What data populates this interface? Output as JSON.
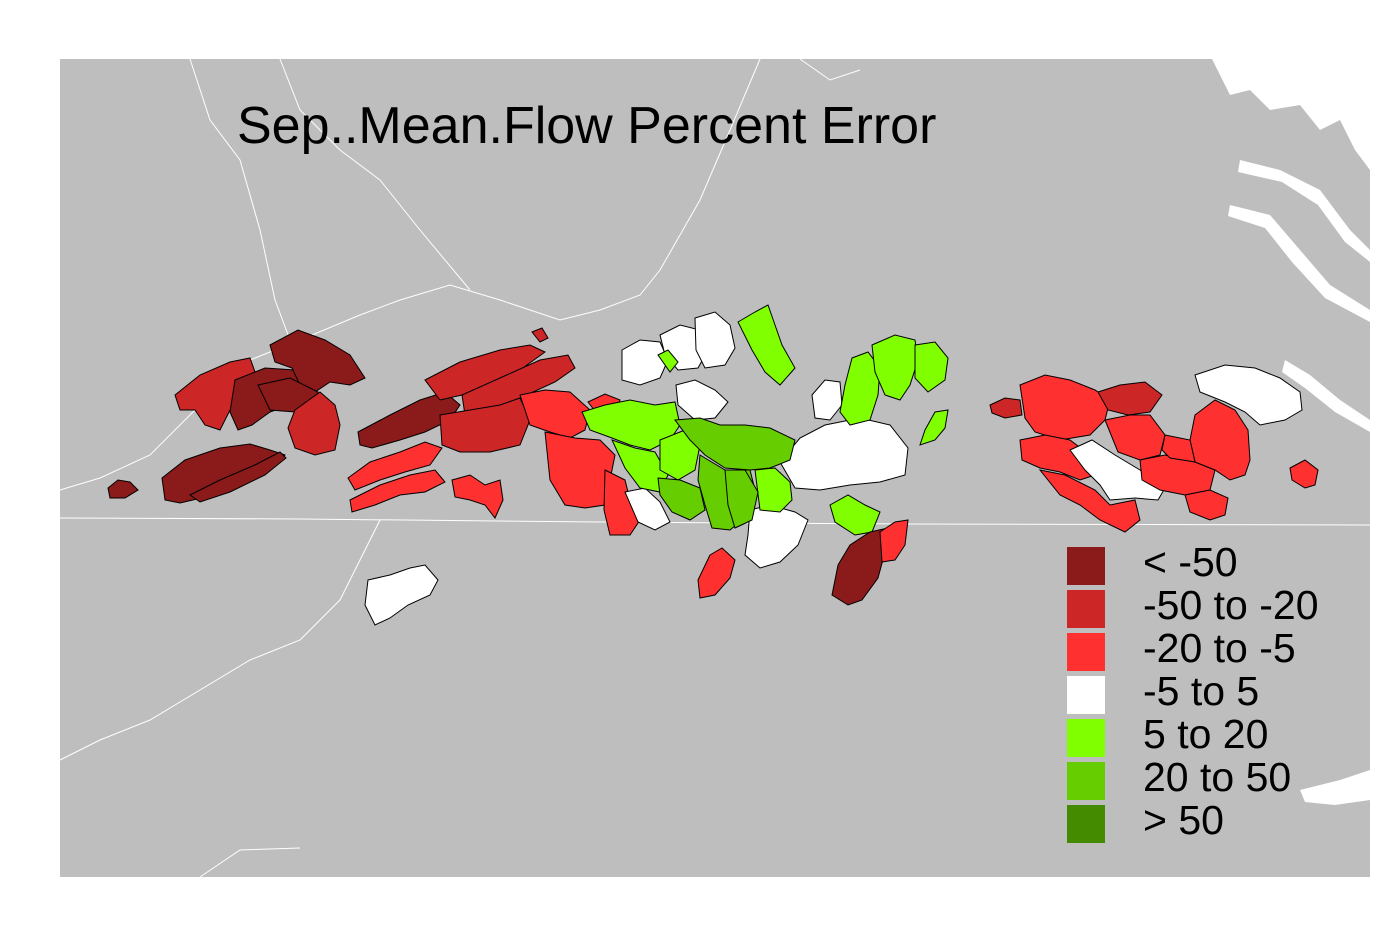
{
  "map": {
    "title": "Sep..Mean.Flow Percent Error",
    "background_color": "#bebebe",
    "border_color": "#ffffff",
    "legend": {
      "placement": "bottom-right",
      "items": [
        {
          "key": "lt_m50",
          "label": "< -50",
          "color": "#8b1a1a"
        },
        {
          "key": "m50_m20",
          "label": "-50 to -20",
          "color": "#cd2626"
        },
        {
          "key": "m20_m5",
          "label": "-20 to -5",
          "color": "#ff3030"
        },
        {
          "key": "m5_5",
          "label": "-5 to 5",
          "color": "#ffffff"
        },
        {
          "key": "5_20",
          "label": "5 to 20",
          "color": "#7fff00"
        },
        {
          "key": "20_50",
          "label": "20 to 50",
          "color": "#66cd00"
        },
        {
          "key": "gt_50",
          "label": "> 50",
          "color": "#458b00"
        }
      ]
    }
  }
}
